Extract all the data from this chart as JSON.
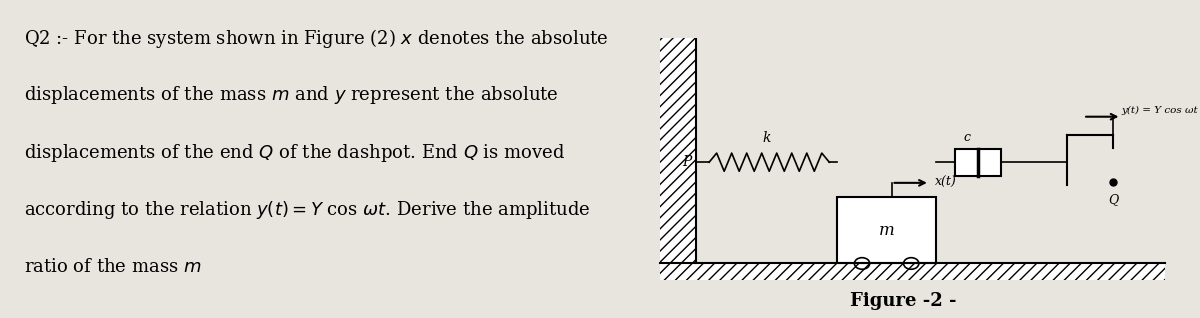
{
  "page_bg": "#e8e4de",
  "diagram_bg": "#c8c4bc",
  "text_lines": [
    "Q2 :- For the system shown in Figure (2) $x$ denotes the absolute",
    "displacements of the mass $m$ and $y$ represent the absolute",
    "displacements of the end $Q$ of the dashpot. End $Q$ is moved",
    "according to the relation $y(t) = Y$ cos $\\omega t$. Derive the amplitude",
    "ratio of the mass $m$"
  ],
  "figure_label": "Figure -2 -",
  "x_label": "x(t)",
  "y_label": "y(t) = Y cos ωt",
  "spring_label": "k",
  "dashpot_label": "c",
  "mass_label": "m",
  "p_label": "P",
  "q_label": "Q",
  "text_fontsize": 13.0,
  "fig_label_fontsize": 13
}
